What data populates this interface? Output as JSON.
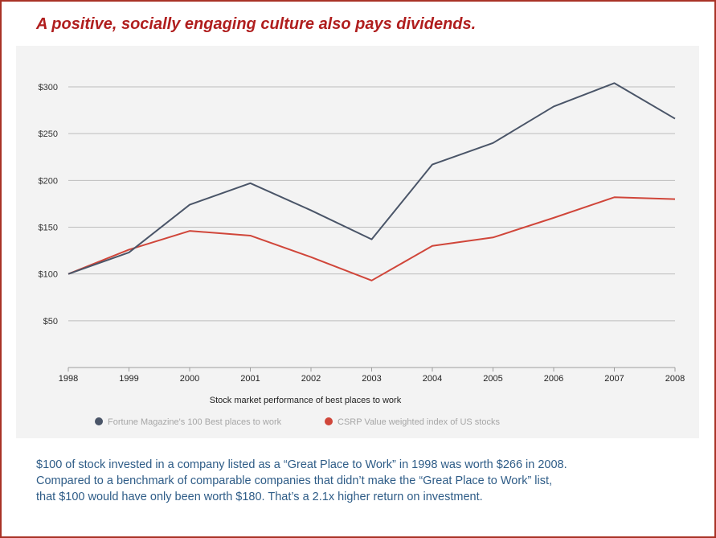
{
  "headline": "A positive, socially engaging culture also pays dividends.",
  "colors": {
    "frame": "#a93226",
    "headline": "#b01e1e",
    "series_best": "#4a5568",
    "series_csrp": "#d0463a",
    "caption": "#2e5c87"
  },
  "chart_data": {
    "type": "line",
    "title": "",
    "xlabel": "Stock market performance of best places to work",
    "ylabel": "",
    "x": [
      "1998",
      "1999",
      "2000",
      "2001",
      "2002",
      "2003",
      "2004",
      "2005",
      "2006",
      "2007",
      "2008"
    ],
    "ylim": [
      0,
      300
    ],
    "yticks": [
      50,
      100,
      150,
      200,
      250,
      300
    ],
    "ytick_labels": [
      "$50",
      "$100",
      "$150",
      "$200",
      "$250",
      "$300"
    ],
    "grid": true,
    "legend_position": "bottom",
    "series": [
      {
        "name": "Fortune Magazine's 100 Best places to work",
        "color": "#4a5568",
        "values": [
          100,
          123,
          174,
          197,
          168,
          137,
          217,
          240,
          279,
          304,
          266
        ]
      },
      {
        "name": "CSRP Value weighted index of US stocks",
        "color": "#d0463a",
        "values": [
          100,
          126,
          146,
          141,
          118,
          93,
          130,
          139,
          160,
          182,
          180
        ]
      }
    ]
  },
  "caption": {
    "lines": [
      "$100 of stock invested in a company listed as a “Great Place to Work” in 1998 was worth $266 in 2008.",
      "Compared to a benchmark of comparable companies that didn’t make the “Great Place to Work” list,",
      "that $100 would have only been worth $180. That’s a 2.1x higher return on investment."
    ]
  }
}
